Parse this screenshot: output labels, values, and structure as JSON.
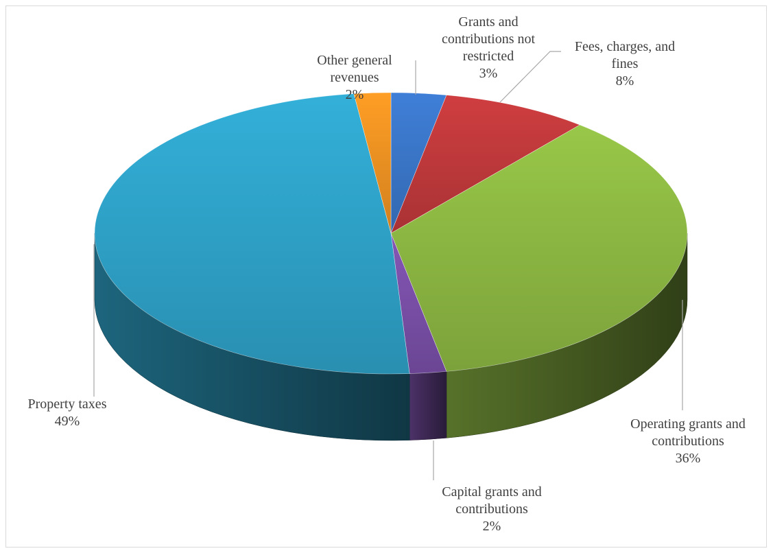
{
  "chart_data": {
    "type": "pie",
    "title": "",
    "style": "3d",
    "slices": [
      {
        "lines": [
          "Grants and",
          "contributions not",
          "restricted"
        ],
        "value": 3,
        "value_label": "3%",
        "color": "#3a76c8"
      },
      {
        "lines": [
          "Fees, charges, and",
          "fines"
        ],
        "value": 8,
        "value_label": "8%",
        "color": "#c0393b"
      },
      {
        "lines": [
          "Operating grants and",
          "contributions"
        ],
        "value": 36,
        "value_label": "36%",
        "color": "#8db843"
      },
      {
        "lines": [
          "Capital grants and",
          "contributions"
        ],
        "value": 2,
        "value_label": "2%",
        "color": "#7a50a8"
      },
      {
        "lines": [
          "Property taxes"
        ],
        "value": 49,
        "value_label": "49%",
        "color": "#2fa3c9"
      },
      {
        "lines": [
          "Other general",
          "revenues"
        ],
        "value": 2,
        "value_label": "2%",
        "color": "#ee9222"
      }
    ]
  }
}
